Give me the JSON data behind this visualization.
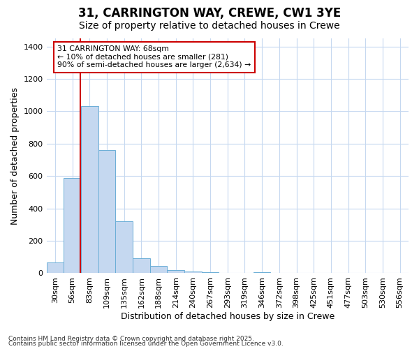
{
  "title_line1": "31, CARRINGTON WAY, CREWE, CW1 3YE",
  "title_line2": "Size of property relative to detached houses in Crewe",
  "xlabel": "Distribution of detached houses by size in Crewe",
  "ylabel": "Number of detached properties",
  "categories": [
    "30sqm",
    "56sqm",
    "83sqm",
    "109sqm",
    "135sqm",
    "162sqm",
    "188sqm",
    "214sqm",
    "240sqm",
    "267sqm",
    "293sqm",
    "319sqm",
    "346sqm",
    "372sqm",
    "398sqm",
    "425sqm",
    "451sqm",
    "477sqm",
    "503sqm",
    "530sqm",
    "556sqm"
  ],
  "values": [
    65,
    590,
    1030,
    760,
    320,
    93,
    43,
    20,
    10,
    5,
    0,
    0,
    8,
    0,
    0,
    0,
    0,
    0,
    0,
    0,
    0
  ],
  "bar_color": "#c5d8f0",
  "bar_edge_color": "#6baed6",
  "red_line_x": 1.45,
  "annotation_text": "31 CARRINGTON WAY: 68sqm\n← 10% of detached houses are smaller (281)\n90% of semi-detached houses are larger (2,634) →",
  "annotation_box_color": "#ffffff",
  "annotation_box_edge": "#cc0000",
  "ylim": [
    0,
    1450
  ],
  "yticks": [
    0,
    200,
    400,
    600,
    800,
    1000,
    1200,
    1400
  ],
  "footer_line1": "Contains HM Land Registry data © Crown copyright and database right 2025.",
  "footer_line2": "Contains public sector information licensed under the Open Government Licence v3.0.",
  "bg_color": "#ffffff",
  "plot_bg_color": "#ffffff",
  "grid_color": "#c5d8f0",
  "red_line_color": "#cc0000",
  "title_fontsize": 12,
  "subtitle_fontsize": 10,
  "xlabel_fontsize": 9,
  "ylabel_fontsize": 9,
  "tick_fontsize": 8,
  "footer_fontsize": 6.5
}
